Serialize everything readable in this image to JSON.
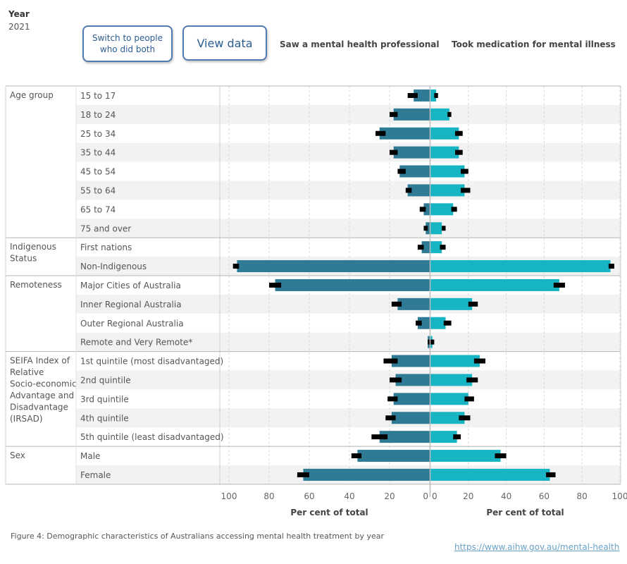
{
  "header": {
    "year_label": "Year",
    "year_value": "2021",
    "switch_button": [
      "Switch to people",
      "who did both"
    ],
    "view_data_button": "View data",
    "left_title": "Saw a mental health professional",
    "right_title": "Took medication for mental illness"
  },
  "footer": {
    "caption": "Figure 4: Demographic characteristics of Australians accessing mental health treatment by year",
    "link": "https://www.aihw.gov.au/mental-health"
  },
  "colors": {
    "left_bar": "#2f7a95",
    "right_bar": "#17b5c3",
    "error_bar": "#000000",
    "band": "#f2f2f2"
  },
  "chart_data": {
    "type": "bar",
    "orientation": "horizontal-diverging",
    "xlabel_left": "Per cent of total",
    "xlabel_right": "Per cent of total",
    "xlim_left": [
      0,
      100
    ],
    "xlim_right": [
      0,
      100
    ],
    "ticks_left": [
      "100",
      "80",
      "60",
      "40",
      "20",
      "0"
    ],
    "ticks_right": [
      "0",
      "20",
      "40",
      "60",
      "80",
      "100"
    ],
    "groups": [
      {
        "name": [
          "Age group"
        ],
        "rows": [
          {
            "label": "15 to 17",
            "left": 8,
            "left_ci": [
              6,
              11
            ],
            "right": 3,
            "right_ci": [
              2,
              4
            ]
          },
          {
            "label": "18 to 24",
            "left": 18,
            "left_ci": [
              16,
              20
            ],
            "right": 10,
            "right_ci": [
              9,
              11
            ]
          },
          {
            "label": "25 to 34",
            "left": 25,
            "left_ci": [
              22,
              27
            ],
            "right": 15,
            "right_ci": [
              13,
              17
            ]
          },
          {
            "label": "35 to 44",
            "left": 18,
            "left_ci": [
              16,
              20
            ],
            "right": 15,
            "right_ci": [
              13,
              17
            ]
          },
          {
            "label": "45 to 54",
            "left": 15,
            "left_ci": [
              12,
              16
            ],
            "right": 18,
            "right_ci": [
              16,
              20
            ]
          },
          {
            "label": "55 to 64",
            "left": 11,
            "left_ci": [
              9,
              12
            ],
            "right": 18,
            "right_ci": [
              16,
              21
            ]
          },
          {
            "label": "65 to 74",
            "left": 3,
            "left_ci": [
              2,
              5
            ],
            "right": 12,
            "right_ci": [
              11,
              14
            ]
          },
          {
            "label": "75 and over",
            "left": 2,
            "left_ci": [
              1,
              3
            ],
            "right": 6,
            "right_ci": [
              6,
              8
            ]
          }
        ]
      },
      {
        "name": [
          "Indigenous",
          "Status"
        ],
        "rows": [
          {
            "label": "First nations",
            "left": 4,
            "left_ci": [
              3,
              6
            ],
            "right": 6,
            "right_ci": [
              5,
              8
            ]
          },
          {
            "label": "Non-Indigenous",
            "left": 96,
            "left_ci": [
              95,
              98
            ],
            "right": 95,
            "right_ci": [
              94,
              97
            ]
          }
        ]
      },
      {
        "name": [
          "Remoteness"
        ],
        "rows": [
          {
            "label": "Major Cities of Australia",
            "left": 77,
            "left_ci": [
              74,
              80
            ],
            "right": 68,
            "right_ci": [
              65,
              71
            ]
          },
          {
            "label": "Inner Regional Australia",
            "left": 16,
            "left_ci": [
              14,
              19
            ],
            "right": 22,
            "right_ci": [
              20,
              25
            ]
          },
          {
            "label": "Outer Regional Australia",
            "left": 6,
            "left_ci": [
              4,
              7
            ],
            "right": 8,
            "right_ci": [
              7,
              11
            ]
          },
          {
            "label": "Remote and Very Remote*",
            "left": 1,
            "left_ci": [
              0,
              1
            ],
            "right": 1,
            "right_ci": [
              0,
              2
            ]
          }
        ]
      },
      {
        "name": [
          "SEIFA Index of",
          "Relative",
          "Socio-economic",
          "Advantage and",
          "Disadvantage",
          "(IRSAD)"
        ],
        "rows": [
          {
            "label": "1st quintile (most disadvantaged)",
            "left": 19,
            "left_ci": [
              16,
              23
            ],
            "right": 26,
            "right_ci": [
              23,
              29
            ]
          },
          {
            "label": "2nd quintile",
            "left": 17,
            "left_ci": [
              14,
              20
            ],
            "right": 22,
            "right_ci": [
              19,
              25
            ]
          },
          {
            "label": "3rd quintile",
            "left": 18,
            "left_ci": [
              16,
              21
            ],
            "right": 20,
            "right_ci": [
              18,
              23
            ]
          },
          {
            "label": "4th quintile",
            "left": 19,
            "left_ci": [
              17,
              22
            ],
            "right": 18,
            "right_ci": [
              15,
              21
            ]
          },
          {
            "label": "5th quintile (least disadvantaged)",
            "left": 25,
            "left_ci": [
              21,
              29
            ],
            "right": 14,
            "right_ci": [
              12,
              16
            ]
          }
        ]
      },
      {
        "name": [
          "Sex"
        ],
        "rows": [
          {
            "label": "Male",
            "left": 36,
            "left_ci": [
              34,
              39
            ],
            "right": 37,
            "right_ci": [
              34,
              40
            ]
          },
          {
            "label": "Female",
            "left": 63,
            "left_ci": [
              60,
              66
            ],
            "right": 63,
            "right_ci": [
              61,
              66
            ]
          }
        ]
      }
    ]
  }
}
